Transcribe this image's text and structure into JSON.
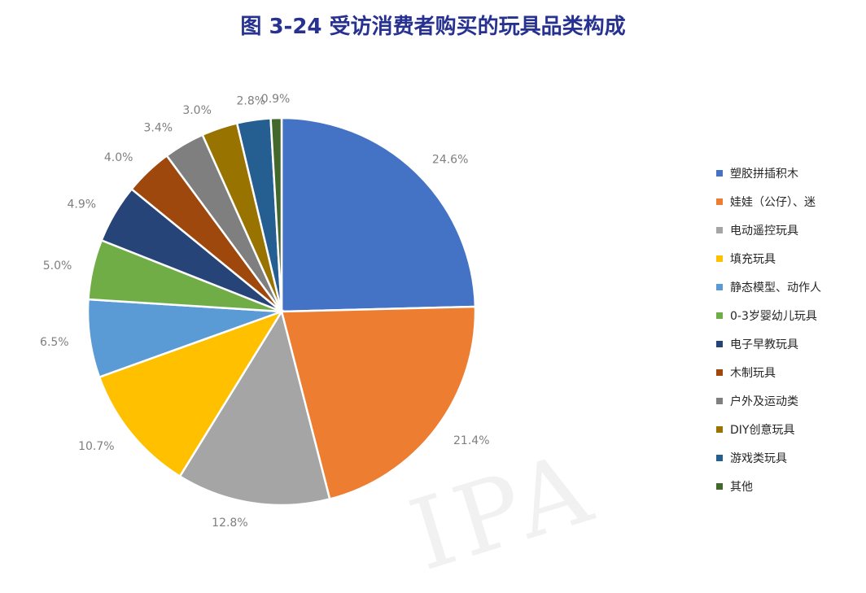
{
  "chart_data": {
    "type": "pie",
    "title": "图 3-24  受访消费者购买的玩具品类构成",
    "categories": [
      "塑胶拼插积木",
      "娃娃（公仔）、迷",
      "电动遥控玩具",
      "填充玩具",
      "静态模型、动作人",
      "0-3岁婴幼儿玩具",
      "电子早教玩具",
      "木制玩具",
      "户外及运动类",
      "DIY创意玩具",
      "游戏类玩具",
      "其他"
    ],
    "values": [
      24.6,
      21.4,
      12.8,
      10.7,
      6.5,
      5.0,
      4.9,
      4.0,
      3.4,
      3.0,
      2.8,
      0.9
    ],
    "labels": [
      "24.6%",
      "21.4%",
      "12.8%",
      "10.7%",
      "6.5%",
      "5.0%",
      "4.9%",
      "4.0%",
      "3.4%",
      "3.0%",
      "2.8%",
      "0.9%"
    ],
    "colors": [
      "#4472c4",
      "#ed7d31",
      "#a5a5a5",
      "#ffc000",
      "#5b9bd5",
      "#70ad47",
      "#264478",
      "#9e480e",
      "#7f7f7f",
      "#997300",
      "#255e91",
      "#43682b"
    ],
    "legend_position": "right"
  },
  "watermark": "IPA"
}
